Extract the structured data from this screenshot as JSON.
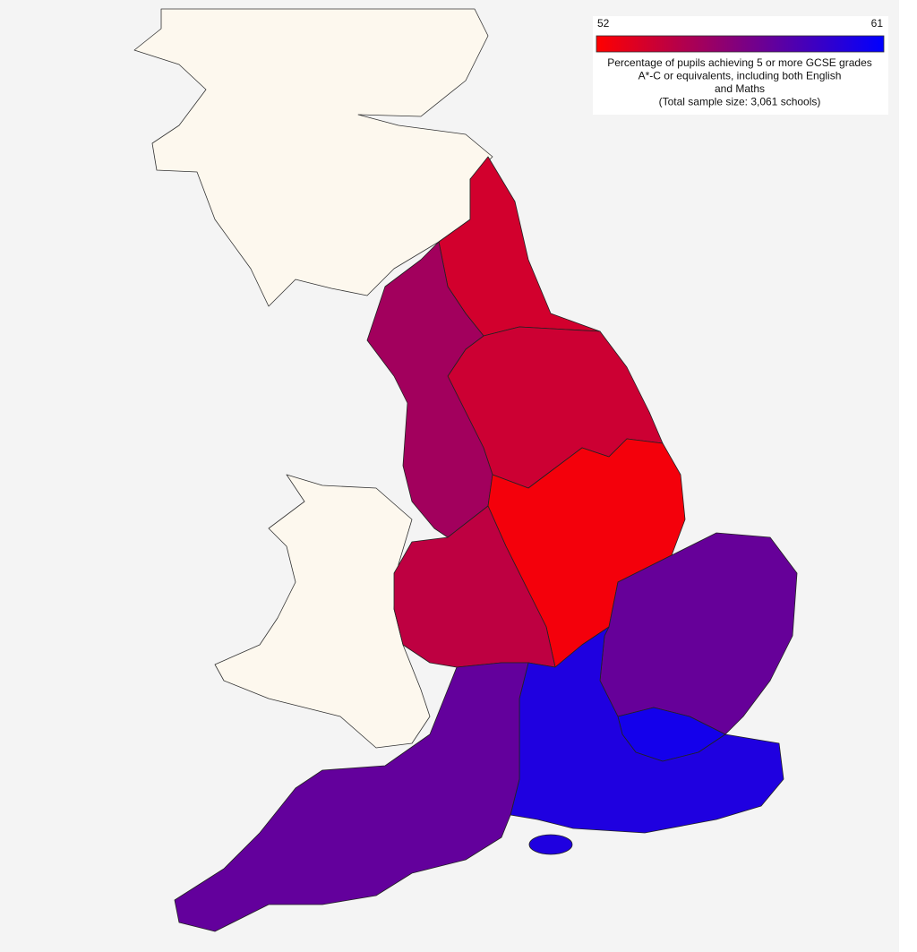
{
  "chart_data": {
    "type": "choropleth",
    "colorbar": {
      "min": 52,
      "max": 61,
      "colors": [
        "#ff0000",
        "#0000ff"
      ],
      "caption": [
        "Percentage of pupils achieving 5 or more GCSE grades",
        "A*-C or equivalents, including both English",
        "and Maths",
        "(Total sample size: 3,061 schools)"
      ]
    },
    "regions": {
      "values": [
        53.6,
        53.8,
        55.3,
        52.4,
        54.3,
        57.4,
        60.3,
        59.9,
        57.5
      ]
    },
    "land_color": "#fdf8ee",
    "background": "#f4f4f4"
  }
}
